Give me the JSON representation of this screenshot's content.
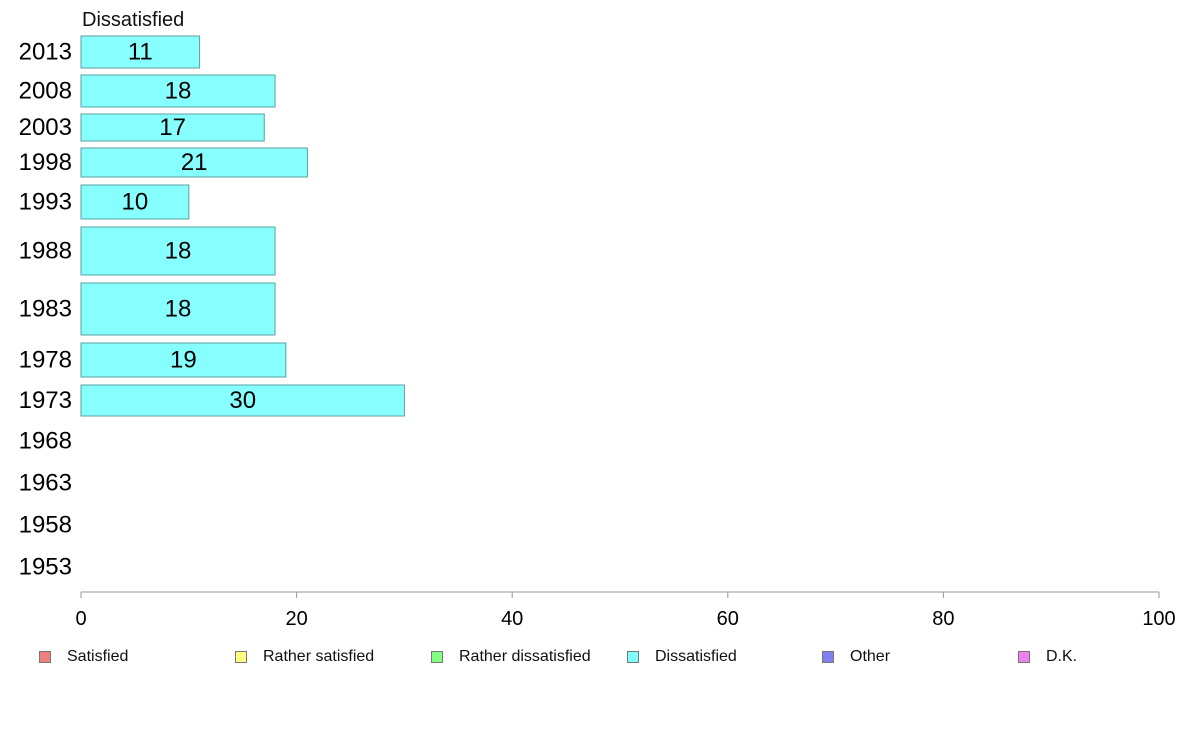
{
  "chart_data": {
    "type": "bar",
    "orientation": "horizontal",
    "title": "Dissatisfied",
    "categories": [
      "2013",
      "2008",
      "2003",
      "1998",
      "1993",
      "1988",
      "1983",
      "1978",
      "1973",
      "1968",
      "1963",
      "1958",
      "1953"
    ],
    "series": [
      {
        "name": "Dissatisfied",
        "values": [
          11,
          18,
          17,
          21,
          10,
          18,
          18,
          19,
          30,
          null,
          null,
          null,
          null
        ],
        "color": "#88ffff"
      }
    ],
    "xlim": [
      0,
      100
    ],
    "xticks": [
      0,
      20,
      40,
      60,
      80,
      100
    ],
    "grid": false,
    "legend_position": "bottom"
  },
  "legend": [
    {
      "label": "Satisfied",
      "color": "#f08080"
    },
    {
      "label": "Rather satisfied",
      "color": "#ffff80"
    },
    {
      "label": "Rather dissatisfied",
      "color": "#80ff80"
    },
    {
      "label": "Dissatisfied",
      "color": "#80ffff"
    },
    {
      "label": "Other",
      "color": "#8080f0"
    },
    {
      "label": "D.K.",
      "color": "#f080f0"
    }
  ],
  "colors": {
    "bar_border": "#5aa0a0",
    "axis": "#999999",
    "text": "#000000"
  }
}
